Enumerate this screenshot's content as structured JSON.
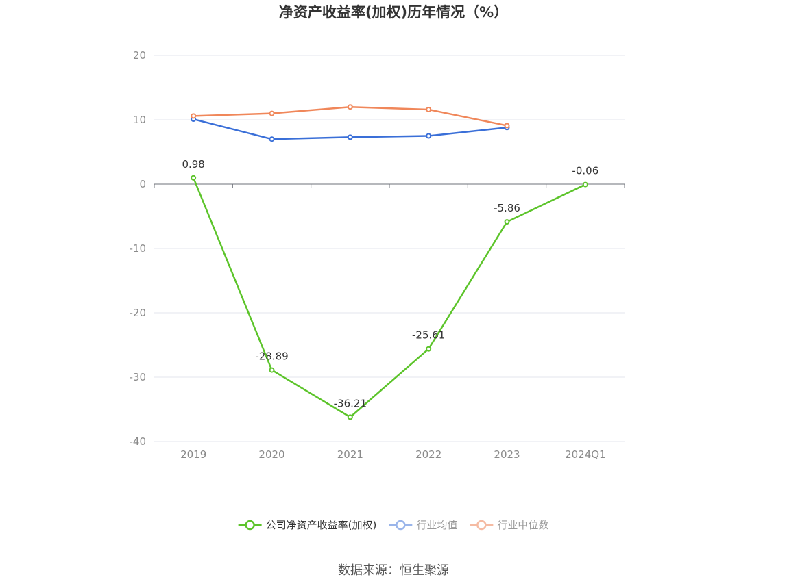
{
  "chart_data": {
    "type": "line",
    "title": "净资产收益率(加权)历年情况（%）",
    "categories": [
      "2019",
      "2020",
      "2021",
      "2022",
      "2023",
      "2024Q1"
    ],
    "ylim": [
      -40,
      20
    ],
    "yticks": [
      20,
      10,
      0,
      -10,
      -20,
      -30,
      -40
    ],
    "grid": true,
    "legend_position": "bottom",
    "series": [
      {
        "name": "公司净资产收益率(加权)",
        "color": "#5cc42a",
        "values": [
          0.98,
          -28.89,
          -36.21,
          -25.61,
          -5.86,
          -0.06
        ],
        "labels": [
          "0.98",
          "-28.89",
          "-36.21",
          "-25.61",
          "-5.86",
          "-0.06"
        ]
      },
      {
        "name": "行业均值",
        "color": "#3a6fd8",
        "legend_color": "#9ab5ea",
        "values": [
          10.1,
          7.0,
          7.3,
          7.5,
          8.8,
          null
        ]
      },
      {
        "name": "行业中位数",
        "color": "#f0875a",
        "legend_color": "#f5bba3",
        "values": [
          10.6,
          11.0,
          12.0,
          11.6,
          9.1,
          null
        ]
      }
    ]
  },
  "footer": {
    "source": "数据来源：恒生聚源"
  }
}
